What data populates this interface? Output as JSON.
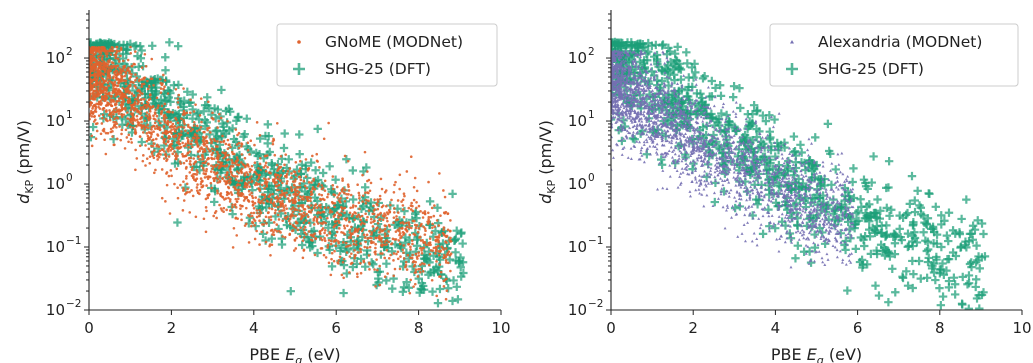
{
  "colors": {
    "gnome": "#e0632e",
    "shg25": "#1b9e77",
    "alexandria": "#7570b3"
  },
  "chart_data": [
    {
      "type": "scatter",
      "xlabel_prefix": "PBE ",
      "xlabel_symbol": "E",
      "xlabel_sub": "g",
      "xlabel_suffix": " (eV)",
      "ylabel_symbol": "d",
      "ylabel_sub": "KP",
      "ylabel_suffix": " (pm/V)",
      "xlim": [
        0,
        10
      ],
      "ylim": [
        0.01,
        500
      ],
      "yscale": "log",
      "xticks": [
        "0",
        "2",
        "4",
        "6",
        "8",
        "10"
      ],
      "xtick_values": [
        0,
        2,
        4,
        6,
        8,
        10
      ],
      "ytick_values": [
        0.01,
        0.1,
        1,
        10,
        100
      ],
      "yticks": [
        "10",
        "10",
        "10",
        "10",
        "10"
      ],
      "ytick_exps": [
        "−2",
        "−1",
        "0",
        "1",
        "2"
      ],
      "legend_position": "top-right",
      "grid": false,
      "series": [
        {
          "name": "GNoME (MODNet)",
          "marker": "dot",
          "color_key": "gnome",
          "trend": [
            [
              0.1,
              60
            ],
            [
              1,
              20
            ],
            [
              2,
              5
            ],
            [
              3,
              2
            ],
            [
              4,
              0.8
            ],
            [
              5,
              0.5
            ],
            [
              6,
              0.3
            ],
            [
              7,
              0.2
            ],
            [
              8,
              0.15
            ],
            [
              8.8,
              0.12
            ]
          ],
          "x_max": 8.8,
          "y_max": 150,
          "y_min_edge": 0.05
        },
        {
          "name": "SHG-25 (DFT)",
          "marker": "plus",
          "color_key": "shg25",
          "trend": [
            [
              0.2,
              80
            ],
            [
              1,
              40
            ],
            [
              2,
              12
            ],
            [
              3,
              4
            ],
            [
              4,
              1.5
            ],
            [
              5,
              0.6
            ],
            [
              6,
              0.3
            ],
            [
              7,
              0.15
            ],
            [
              8,
              0.08
            ],
            [
              9,
              0.05
            ]
          ],
          "x_max": 9.1,
          "y_max": 180,
          "y_min_edge": 0.01
        }
      ]
    },
    {
      "type": "scatter",
      "xlabel_prefix": "PBE ",
      "xlabel_symbol": "E",
      "xlabel_sub": "g",
      "xlabel_suffix": " (eV)",
      "ylabel_symbol": "d",
      "ylabel_sub": "KP",
      "ylabel_suffix": " (pm/V)",
      "xlim": [
        0,
        10
      ],
      "ylim": [
        0.01,
        500
      ],
      "yscale": "log",
      "xticks": [
        "0",
        "2",
        "4",
        "6",
        "8",
        "10"
      ],
      "xtick_values": [
        0,
        2,
        4,
        6,
        8,
        10
      ],
      "ytick_values": [
        0.01,
        0.1,
        1,
        10,
        100
      ],
      "yticks": [
        "10",
        "10",
        "10",
        "10",
        "10"
      ],
      "ytick_exps": [
        "−2",
        "−1",
        "0",
        "1",
        "2"
      ],
      "legend_position": "top-right",
      "grid": false,
      "series": [
        {
          "name": "Alexandria (MODNet)",
          "marker": "triangle",
          "color_key": "alexandria",
          "trend": [
            [
              0.1,
              40
            ],
            [
              1,
              15
            ],
            [
              2,
              5
            ],
            [
              3,
              1.8
            ],
            [
              4,
              0.8
            ],
            [
              5,
              0.4
            ],
            [
              5.8,
              0.3
            ]
          ],
          "x_max": 5.9,
          "y_max": 130,
          "y_min_edge": 0.05
        },
        {
          "name": "SHG-25 (DFT)",
          "marker": "plus",
          "color_key": "shg25",
          "trend": [
            [
              0.2,
              80
            ],
            [
              1,
              40
            ],
            [
              2,
              12
            ],
            [
              3,
              4
            ],
            [
              4,
              1.5
            ],
            [
              5,
              0.6
            ],
            [
              6,
              0.3
            ],
            [
              7,
              0.15
            ],
            [
              8,
              0.08
            ],
            [
              9,
              0.05
            ]
          ],
          "x_max": 9.1,
          "y_max": 180,
          "y_min_edge": 0.01
        }
      ]
    }
  ]
}
